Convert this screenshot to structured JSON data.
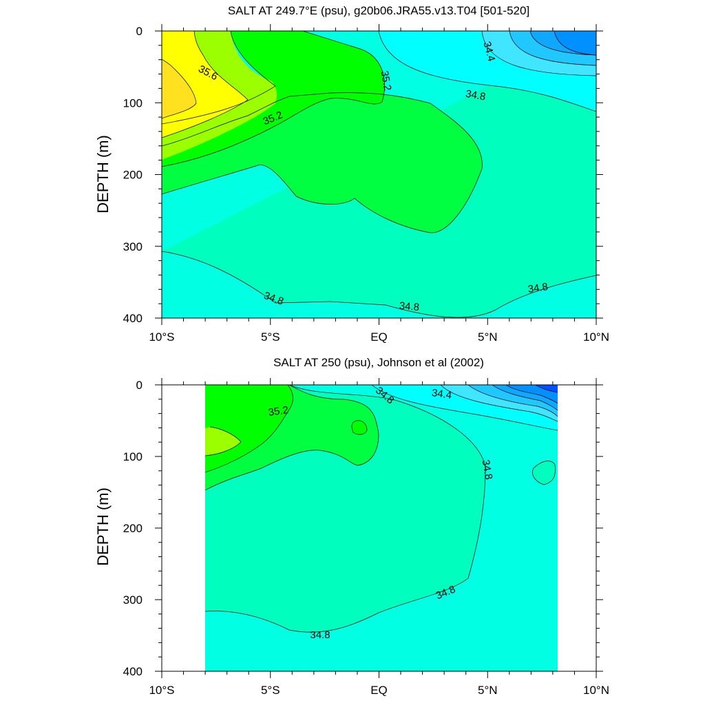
{
  "chart_data": [
    {
      "type": "contour",
      "title": "SALT AT 249.7°E (psu), g20b06.JRA55.v13.T04 [501-520]",
      "ylabel": "DEPTH (m)",
      "xlabel": "",
      "x_ticks": [
        "10°S",
        "5°S",
        "EQ",
        "5°N",
        "10°N"
      ],
      "y_ticks": [
        "0",
        "100",
        "200",
        "300",
        "400"
      ],
      "xlim": [
        -10,
        10
      ],
      "ylim": [
        400,
        0
      ],
      "contour_labels": [
        "35.6",
        "35.2",
        "35.2",
        "34.4",
        "34.8",
        "34.8",
        "34.8",
        "34.8"
      ],
      "contour_levels": [
        34.8,
        35.0,
        35.2,
        35.4,
        35.6,
        35.8
      ]
    },
    {
      "type": "contour",
      "title": "SALT AT 250 (psu), Johnson et al (2002)",
      "ylabel": "DEPTH (m)",
      "xlabel": "",
      "x_ticks": [
        "10°S",
        "5°S",
        "EQ",
        "5°N",
        "10°N"
      ],
      "y_ticks": [
        "0",
        "100",
        "200",
        "300",
        "400"
      ],
      "xlim": [
        -10,
        10
      ],
      "ylim": [
        400,
        0
      ],
      "contour_labels": [
        "35.2",
        "34.8",
        "34.4",
        "34.8",
        "34.8",
        "34.8"
      ],
      "data_extent_lon": [
        -8,
        8.2
      ]
    }
  ],
  "colors": {
    "c_lt348": "#00ffe3",
    "c_348": "#00ffbf",
    "c_350": "#00ff40",
    "c_352": "#00ff00",
    "c_354": "#9cff00",
    "c_356": "#ffff00",
    "c_358": "#ffe120",
    "fresh1": "#00ffff",
    "fresh2": "#40e6ff",
    "fresh3": "#20c8ff",
    "fresh4": "#10a8ff",
    "fresh5": "#0090ff",
    "fresh6": "#0050ff"
  }
}
